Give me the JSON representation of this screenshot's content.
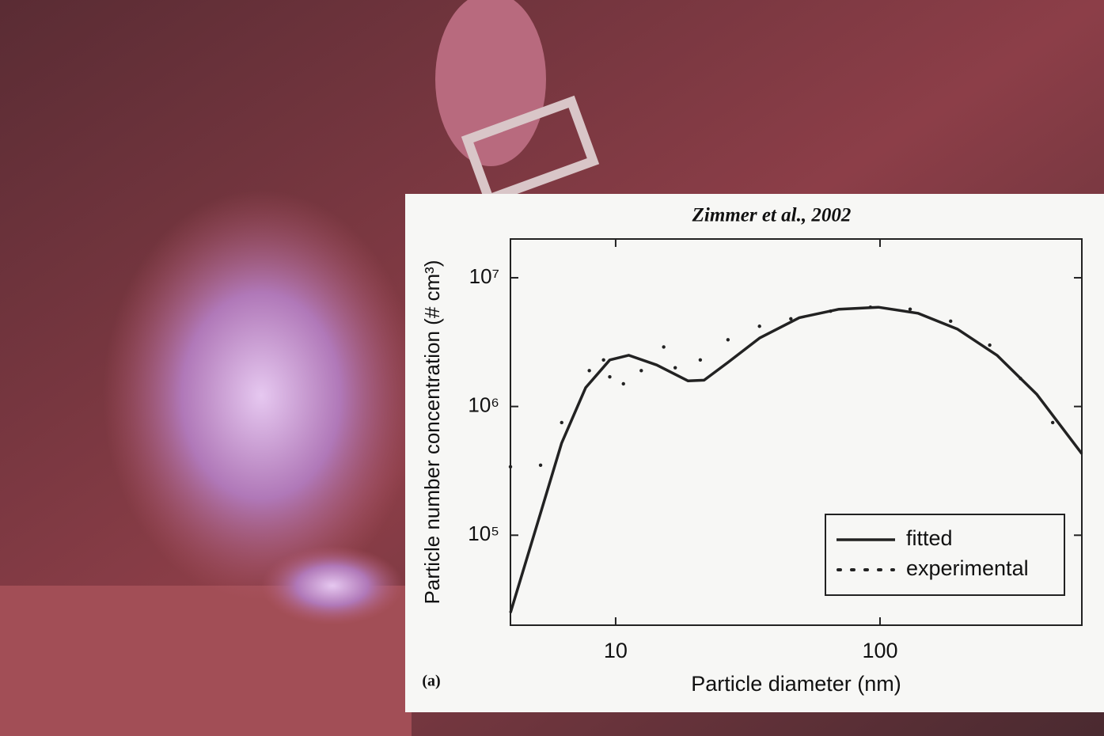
{
  "chart_data": {
    "type": "line",
    "title": "Zimmer et al., 2002",
    "annotation": "(a)",
    "x_label": "Particle diameter (nm)",
    "y_label": "Particle number concentration (# cm³)",
    "xlog": true,
    "ylog": true,
    "xlim": [
      4,
      580
    ],
    "ylim": [
      20000,
      20000000
    ],
    "xticks": [
      10,
      100
    ],
    "yticks": [
      {
        "value": 100000,
        "label": "10⁵"
      },
      {
        "value": 1000000,
        "label": "10⁶"
      },
      {
        "value": 10000000,
        "label": "10⁷"
      }
    ],
    "legend": "lower right",
    "series": [
      {
        "name": "fitted",
        "color": "#222222",
        "style": "solid",
        "x": [
          4,
          5.1,
          6.25,
          7.7,
          9.5,
          11.2,
          14.3,
          18.8,
          21.6,
          26.6,
          35,
          49.5,
          70,
          98.6,
          139,
          196,
          277,
          392,
          580
        ],
        "values": [
          25000,
          130000,
          520000,
          1400000,
          2300000,
          2500000,
          2100000,
          1580000,
          1600000,
          2200000,
          3400000,
          4900000,
          5700000,
          5900000,
          5300000,
          4000000,
          2500000,
          1240000,
          430000
        ]
      },
      {
        "name": "experimental",
        "color": "#222222",
        "style": "dotted",
        "x": [
          4,
          5.2,
          6.25,
          7.95,
          9,
          9.5,
          10.7,
          12.5,
          15.2,
          16.8,
          20.9,
          26.6,
          35,
          46,
          65,
          92,
          130,
          185,
          260,
          340,
          450
        ],
        "values": [
          340000,
          350000,
          750000,
          1900000,
          2300000,
          1700000,
          1500000,
          1900000,
          2900000,
          2000000,
          2300000,
          3300000,
          4200000,
          4800000,
          5500000,
          5900000,
          5700000,
          4600000,
          3000000,
          1650000,
          750000
        ]
      }
    ]
  }
}
